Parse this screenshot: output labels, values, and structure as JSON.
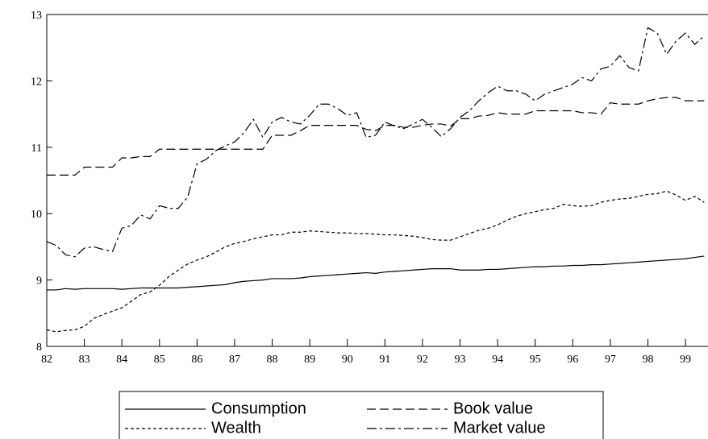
{
  "chart_data": {
    "type": "line",
    "x": [
      82,
      82.25,
      82.5,
      82.75,
      83,
      83.25,
      83.5,
      83.75,
      84,
      84.25,
      84.5,
      84.75,
      85,
      85.25,
      85.5,
      85.75,
      86,
      86.25,
      86.5,
      86.75,
      87,
      87.25,
      87.5,
      87.75,
      88,
      88.25,
      88.5,
      88.75,
      89,
      89.25,
      89.5,
      89.75,
      90,
      90.25,
      90.5,
      90.75,
      91,
      91.25,
      91.5,
      91.75,
      92,
      92.25,
      92.5,
      92.75,
      93,
      93.25,
      93.5,
      93.75,
      94,
      94.25,
      94.5,
      94.75,
      95,
      95.25,
      95.5,
      95.75,
      96,
      96.25,
      96.5,
      96.75,
      97,
      97.25,
      97.5,
      97.75,
      98,
      98.25,
      98.5,
      98.75,
      99,
      99.25,
      99.5
    ],
    "series": [
      {
        "name": "Consumption",
        "color": "#000000",
        "dash": "solid",
        "values": [
          8.85,
          8.85,
          8.87,
          8.86,
          8.87,
          8.87,
          8.87,
          8.87,
          8.86,
          8.87,
          8.88,
          8.88,
          8.88,
          8.88,
          8.88,
          8.89,
          8.9,
          8.91,
          8.92,
          8.93,
          8.96,
          8.98,
          8.99,
          9.0,
          9.02,
          9.02,
          9.02,
          9.03,
          9.05,
          9.06,
          9.07,
          9.08,
          9.09,
          9.1,
          9.11,
          9.1,
          9.12,
          9.13,
          9.14,
          9.15,
          9.16,
          9.17,
          9.17,
          9.17,
          9.15,
          9.15,
          9.15,
          9.16,
          9.16,
          9.17,
          9.18,
          9.19,
          9.2,
          9.2,
          9.21,
          9.21,
          9.22,
          9.22,
          9.23,
          9.23,
          9.24,
          9.25,
          9.26,
          9.27,
          9.28,
          9.29,
          9.3,
          9.31,
          9.32,
          9.34,
          9.36
        ]
      },
      {
        "name": "Book value",
        "color": "#000000",
        "dash": "long-dash",
        "values": [
          10.58,
          10.58,
          10.58,
          10.58,
          10.7,
          10.7,
          10.7,
          10.7,
          10.84,
          10.84,
          10.86,
          10.86,
          10.97,
          10.97,
          10.97,
          10.97,
          10.97,
          10.97,
          10.97,
          10.97,
          10.97,
          10.97,
          10.97,
          10.97,
          11.18,
          11.18,
          11.18,
          11.25,
          11.33,
          11.33,
          11.33,
          11.33,
          11.33,
          11.33,
          11.27,
          11.25,
          11.33,
          11.33,
          11.3,
          11.3,
          11.33,
          11.35,
          11.35,
          11.32,
          11.43,
          11.43,
          11.47,
          11.48,
          11.52,
          11.5,
          11.5,
          11.5,
          11.55,
          11.55,
          11.55,
          11.55,
          11.55,
          11.52,
          11.52,
          11.5,
          11.67,
          11.65,
          11.65,
          11.65,
          11.7,
          11.73,
          11.75,
          11.75,
          11.7,
          11.7,
          11.7
        ]
      },
      {
        "name": "Wealth",
        "color": "#000000",
        "dash": "short-dash",
        "values": [
          8.25,
          8.22,
          8.24,
          8.25,
          8.3,
          8.42,
          8.48,
          8.53,
          8.58,
          8.68,
          8.78,
          8.82,
          8.92,
          9.05,
          9.15,
          9.24,
          9.3,
          9.35,
          9.42,
          9.5,
          9.55,
          9.58,
          9.62,
          9.65,
          9.68,
          9.68,
          9.72,
          9.72,
          9.74,
          9.73,
          9.72,
          9.71,
          9.71,
          9.7,
          9.7,
          9.69,
          9.68,
          9.68,
          9.67,
          9.66,
          9.64,
          9.61,
          9.6,
          9.6,
          9.65,
          9.7,
          9.75,
          9.78,
          9.83,
          9.9,
          9.96,
          10.0,
          10.03,
          10.06,
          10.08,
          10.14,
          10.12,
          10.11,
          10.12,
          10.17,
          10.2,
          10.22,
          10.23,
          10.26,
          10.29,
          10.3,
          10.34,
          10.28,
          10.2,
          10.26,
          10.17
        ]
      },
      {
        "name": "Market value",
        "color": "#000000",
        "dash": "dash-dot",
        "values": [
          9.58,
          9.52,
          9.38,
          9.35,
          9.48,
          9.5,
          9.46,
          9.43,
          9.78,
          9.82,
          9.98,
          9.92,
          10.12,
          10.08,
          10.08,
          10.25,
          10.75,
          10.82,
          10.95,
          11.02,
          11.08,
          11.22,
          11.42,
          11.15,
          11.38,
          11.45,
          11.38,
          11.35,
          11.48,
          11.65,
          11.65,
          11.58,
          11.48,
          11.52,
          11.15,
          11.18,
          11.38,
          11.32,
          11.28,
          11.35,
          11.42,
          11.3,
          11.16,
          11.28,
          11.45,
          11.55,
          11.7,
          11.82,
          11.92,
          11.85,
          11.85,
          11.8,
          11.7,
          11.8,
          11.85,
          11.9,
          11.95,
          12.05,
          12.0,
          12.18,
          12.22,
          12.38,
          12.2,
          12.15,
          12.8,
          12.72,
          12.4,
          12.6,
          12.72,
          12.55,
          12.68
        ]
      }
    ],
    "xlim": [
      82,
      99.6
    ],
    "xticks": [
      82,
      83,
      84,
      85,
      86,
      87,
      88,
      89,
      90,
      91,
      92,
      93,
      94,
      95,
      96,
      97,
      98,
      99
    ],
    "ylim": [
      8,
      13
    ],
    "yticks": [
      8,
      9,
      10,
      11,
      12,
      13
    ],
    "legend": "bottom"
  }
}
